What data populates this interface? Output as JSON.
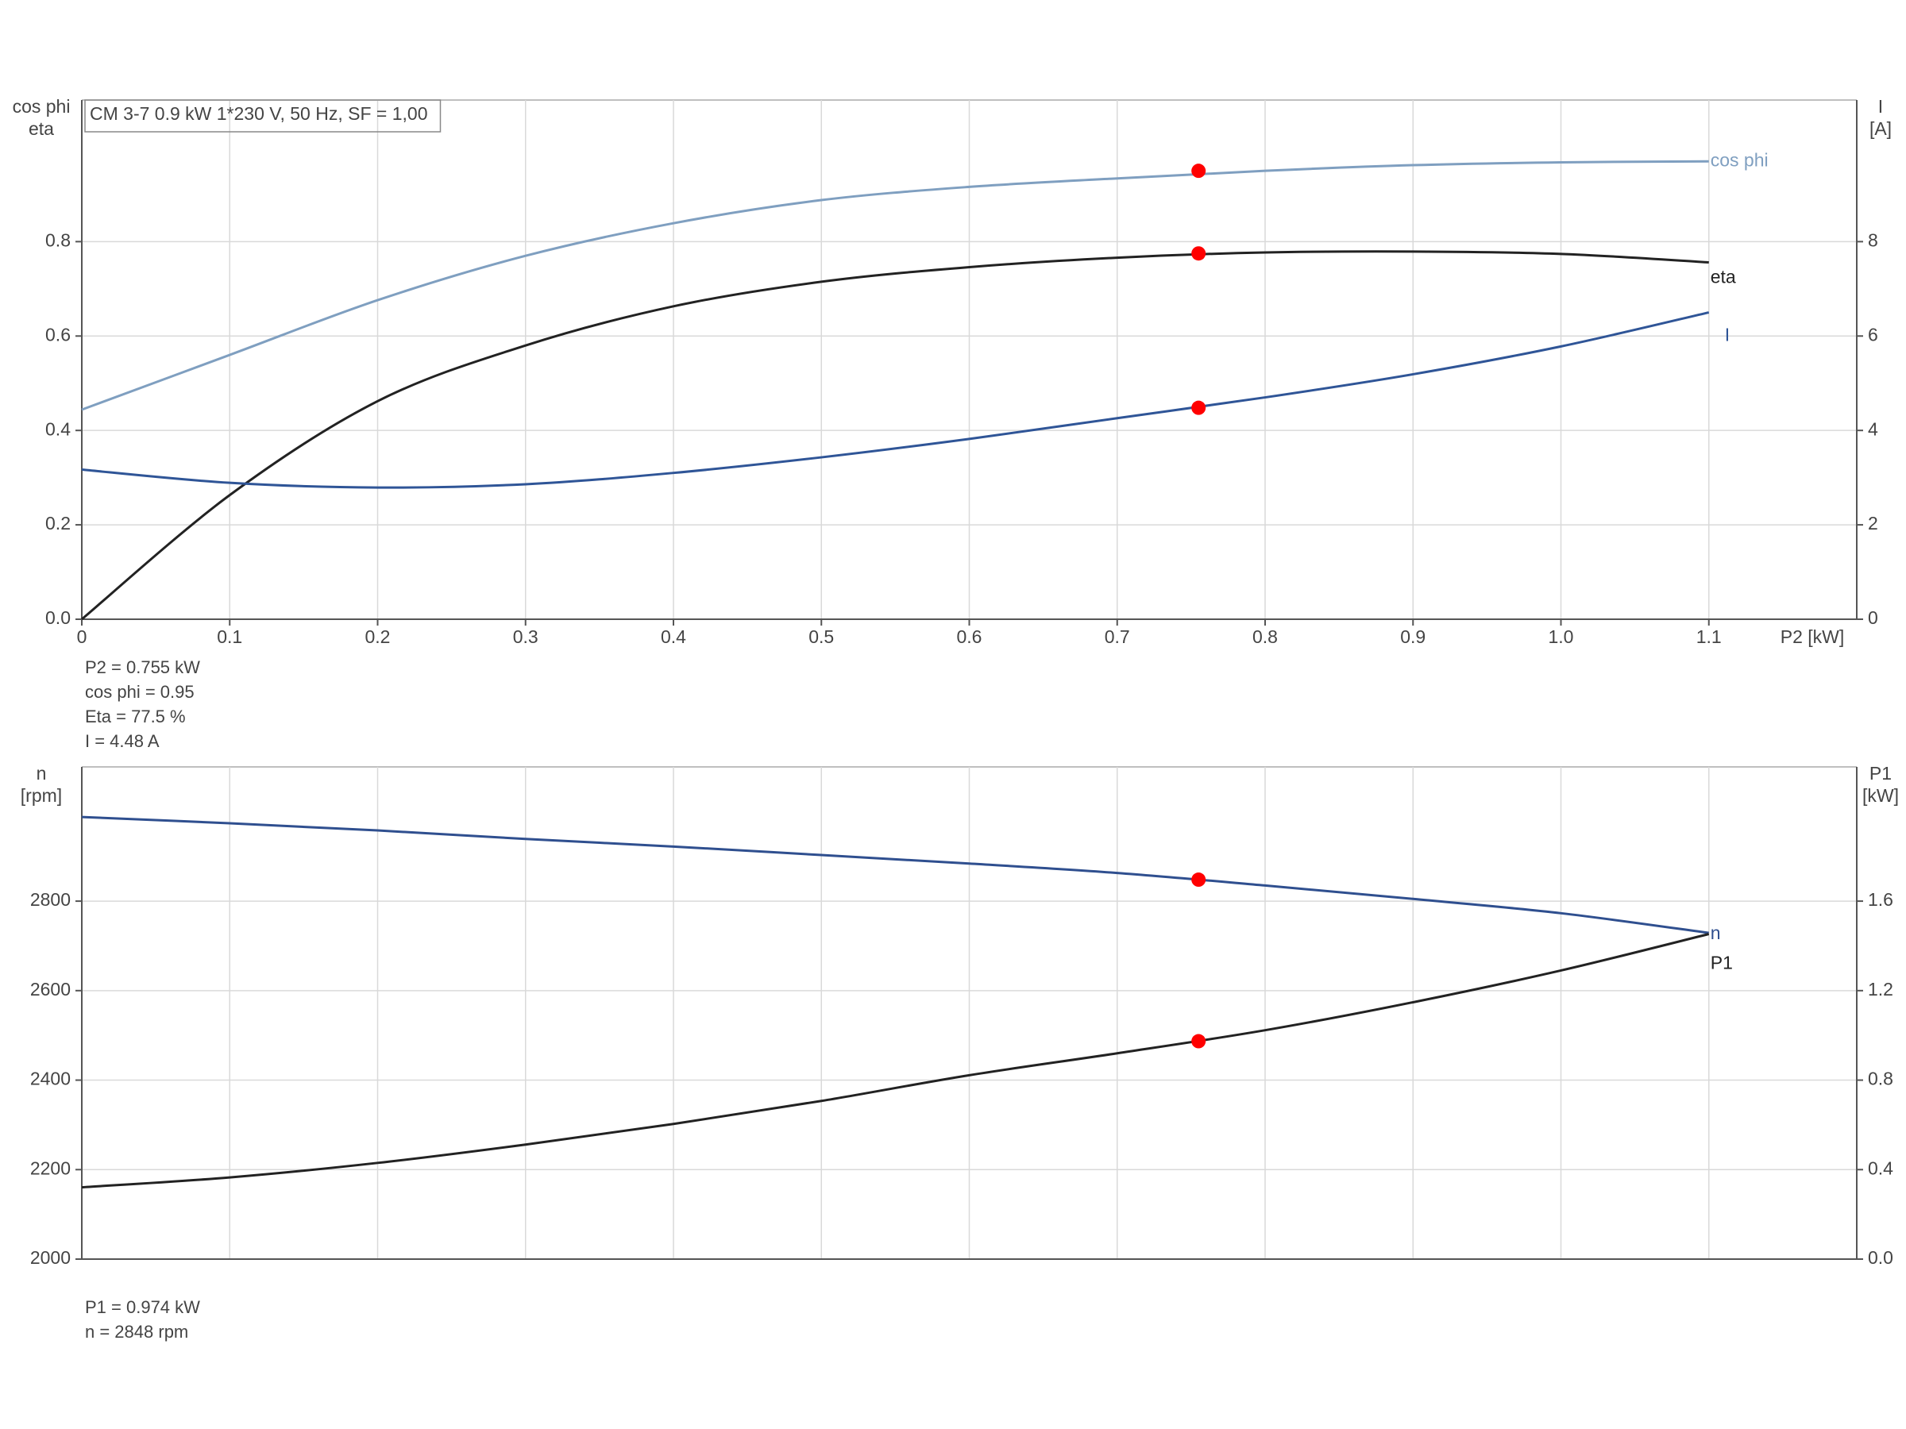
{
  "chart_data": [
    {
      "type": "line",
      "title": "CM 3-7   0.9 kW   1*230 V, 50 Hz, SF = 1,00",
      "xlabel": "P2 [kW]",
      "ylabel": [
        "cos phi",
        "eta"
      ],
      "y2label": [
        "I",
        "[A]"
      ],
      "x": [
        0,
        0.1,
        0.2,
        0.3,
        0.4,
        0.5,
        0.6,
        0.7,
        0.8,
        0.9,
        1.0,
        1.1
      ],
      "xlim": [
        0,
        1.2
      ],
      "xticks": [
        0,
        0.1,
        0.2,
        0.3,
        0.4,
        0.5,
        0.6,
        0.7,
        0.8,
        0.9,
        {
          "value": 1,
          "label": "1.0"
        },
        1.1
      ],
      "xtick_labels": true,
      "ylim": [
        0,
        1.1
      ],
      "yticks": [
        {
          "value": 0,
          "label": "0.0"
        },
        0.2,
        0.4,
        0.6,
        0.8
      ],
      "y2lim": [
        0,
        11
      ],
      "y2ticks": [
        0,
        2,
        4,
        6,
        8
      ],
      "grid": true,
      "marker_x": 0.755,
      "marker_color": "#ff0000",
      "series": [
        {
          "name": "cos phi",
          "color": "#7f9fc0",
          "axis": "y",
          "values": [
            0.444,
            0.56,
            0.676,
            0.77,
            0.839,
            0.888,
            0.916,
            0.934,
            0.95,
            0.962,
            0.968,
            0.97
          ],
          "marker": 0.95
        },
        {
          "name": "eta",
          "color": "#222222",
          "axis": "y",
          "values": [
            0,
            0.263,
            0.462,
            0.58,
            0.663,
            0.715,
            0.746,
            0.766,
            0.777,
            0.779,
            0.774,
            0.756
          ],
          "marker": 0.775
        },
        {
          "name": "I",
          "color": "#2f5597",
          "axis": "y2",
          "values": [
            3.17,
            2.89,
            2.79,
            2.86,
            3.1,
            3.43,
            3.82,
            4.26,
            4.7,
            5.19,
            5.78,
            6.5
          ],
          "marker": 4.48
        }
      ],
      "annotations": [
        "P2 = 0.755 kW",
        "cos phi = 0.95",
        "Eta = 77.5 %",
        "I = 4.48 A"
      ]
    },
    {
      "type": "line",
      "ylabel": [
        "n",
        "[rpm]"
      ],
      "y2label": [
        "P1",
        "[kW]"
      ],
      "x": [
        0,
        0.1,
        0.2,
        0.3,
        0.4,
        0.5,
        0.6,
        0.7,
        0.8,
        0.9,
        1.0,
        1.1
      ],
      "xlim": [
        0,
        1.2
      ],
      "xticks": [
        0,
        0.1,
        0.2,
        0.3,
        0.4,
        0.5,
        0.6,
        0.7,
        0.8,
        0.9,
        1,
        1.1
      ],
      "xtick_labels": false,
      "ylim": [
        2000,
        3100
      ],
      "yticks": [
        2000,
        2200,
        2400,
        2600,
        2800
      ],
      "y2lim": [
        0,
        2.2
      ],
      "y2ticks": [
        {
          "value": 0,
          "label": "0.0"
        },
        0.4,
        0.8,
        1.2,
        1.6
      ],
      "grid": true,
      "marker_x": 0.755,
      "marker_color": "#ff0000",
      "series": [
        {
          "name": "n",
          "color": "#2f4f8f",
          "axis": "y",
          "values": [
            2988,
            2974,
            2958,
            2939,
            2922,
            2903,
            2884,
            2863,
            2835,
            2805,
            2773,
            2729
          ],
          "marker": 2848
        },
        {
          "name": "P1",
          "color": "#222222",
          "axis": "y2",
          "values": [
            0.321,
            0.365,
            0.43,
            0.512,
            0.604,
            0.707,
            0.822,
            0.92,
            1.023,
            1.148,
            1.29,
            1.453
          ],
          "marker": 0.974
        }
      ],
      "annotations": [
        "P1 = 0.974 kW",
        "n = 2848 rpm"
      ]
    }
  ]
}
